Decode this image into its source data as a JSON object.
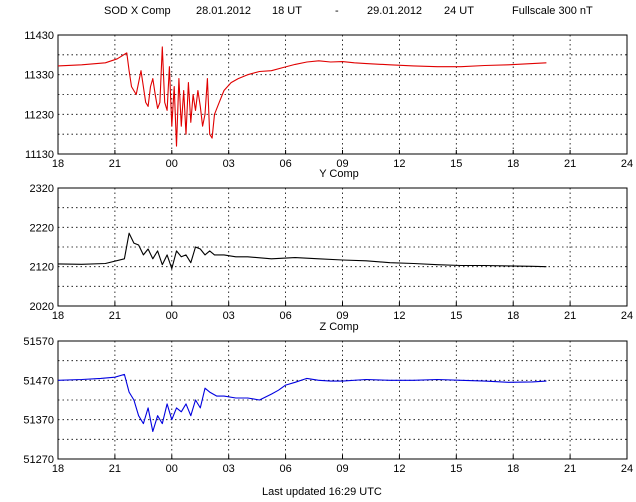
{
  "header": {
    "station": "SOD X Comp",
    "start_date": "28.01.2012",
    "start_hour": "18 UT",
    "separator": "-",
    "end_date": "29.01.2012",
    "end_hour": "24 UT",
    "fullscale": "Fullscale 300 nT"
  },
  "footer": {
    "last_updated": "Last updated  16:29 UTC"
  },
  "chart_data": [
    {
      "type": "line",
      "component": "X",
      "title": "",
      "xlabel": "",
      "ylabel": "",
      "color": "#e00000",
      "grid": true,
      "xlim": [
        18,
        42
      ],
      "x_tick_labels": [
        "18",
        "21",
        "00",
        "03",
        "06",
        "09",
        "12",
        "15",
        "18",
        "21",
        "24"
      ],
      "ylim": [
        11130,
        11430
      ],
      "y_ticks": [
        11130,
        11230,
        11330,
        11430
      ],
      "series": [
        {
          "x": [
            18,
            19,
            20,
            20.5,
            20.9,
            21.0,
            21.1,
            21.3,
            21.5,
            21.7,
            21.8,
            21.9,
            22.0,
            22.1,
            22.2,
            22.3,
            22.4,
            22.5,
            22.6,
            22.7,
            22.8,
            22.9,
            23.0,
            23.1,
            23.2,
            23.3,
            23.4,
            23.5,
            23.6,
            23.7,
            23.8,
            23.9,
            24.0,
            24.1,
            24.2,
            24.3,
            24.4,
            24.5,
            24.6,
            24.8,
            25.0,
            25.3,
            25.6,
            26.0,
            26.5,
            27.0,
            27.5,
            28.0,
            28.5,
            29.0,
            29.5,
            30.0,
            30.5,
            31.0,
            32.0,
            33.0,
            34.0,
            35.0,
            36.0,
            37.0,
            38.0,
            38.6
          ],
          "y": [
            11352,
            11355,
            11360,
            11370,
            11385,
            11340,
            11300,
            11280,
            11340,
            11260,
            11250,
            11300,
            11320,
            11280,
            11245,
            11260,
            11400,
            11260,
            11240,
            11350,
            11200,
            11300,
            11150,
            11320,
            11200,
            11290,
            11180,
            11310,
            11210,
            11280,
            11240,
            11290,
            11250,
            11200,
            11230,
            11320,
            11180,
            11170,
            11230,
            11260,
            11290,
            11310,
            11320,
            11330,
            11338,
            11340,
            11348,
            11356,
            11362,
            11365,
            11362,
            11363,
            11360,
            11358,
            11355,
            11352,
            11350,
            11350,
            11353,
            11355,
            11358,
            11360
          ]
        }
      ]
    },
    {
      "type": "line",
      "component": "Y",
      "title": "Y Comp",
      "xlabel": "",
      "ylabel": "",
      "color": "#000000",
      "grid": true,
      "xlim": [
        18,
        42
      ],
      "x_tick_labels": [
        "18",
        "21",
        "00",
        "03",
        "06",
        "09",
        "12",
        "15",
        "18",
        "21",
        "24"
      ],
      "ylim": [
        2020,
        2320
      ],
      "y_ticks": [
        2020,
        2120,
        2220,
        2320
      ],
      "series": [
        {
          "x": [
            18,
            19,
            20,
            20.8,
            21.0,
            21.2,
            21.4,
            21.6,
            21.8,
            22.0,
            22.2,
            22.4,
            22.6,
            22.8,
            23.0,
            23.2,
            23.4,
            23.6,
            23.8,
            24.0,
            24.2,
            24.4,
            24.6,
            25.0,
            25.5,
            26.0,
            27.0,
            28.0,
            29.0,
            30.0,
            31.0,
            32.0,
            33.0,
            34.0,
            35.0,
            36.0,
            37.0,
            38.0,
            38.6
          ],
          "y": [
            2127,
            2126,
            2128,
            2140,
            2205,
            2180,
            2175,
            2150,
            2165,
            2140,
            2160,
            2125,
            2150,
            2115,
            2160,
            2145,
            2150,
            2130,
            2170,
            2165,
            2150,
            2160,
            2150,
            2150,
            2145,
            2145,
            2140,
            2143,
            2140,
            2137,
            2135,
            2130,
            2128,
            2125,
            2123,
            2123,
            2122,
            2121,
            2120
          ]
        }
      ]
    },
    {
      "type": "line",
      "component": "Z",
      "title": "Z Comp",
      "xlabel": "",
      "ylabel": "",
      "color": "#0000e0",
      "grid": true,
      "xlim": [
        18,
        42
      ],
      "x_tick_labels": [
        "18",
        "21",
        "00",
        "03",
        "06",
        "09",
        "12",
        "15",
        "18",
        "21",
        "24"
      ],
      "ylim": [
        51270,
        51570
      ],
      "y_ticks": [
        51270,
        51370,
        51470,
        51570
      ],
      "series": [
        {
          "x": [
            18,
            19,
            19.8,
            20.4,
            20.8,
            21.0,
            21.2,
            21.4,
            21.6,
            21.8,
            22.0,
            22.2,
            22.4,
            22.6,
            22.8,
            23.0,
            23.2,
            23.4,
            23.6,
            23.8,
            24.0,
            24.2,
            24.4,
            24.7,
            25.0,
            25.5,
            26.0,
            26.5,
            27.0,
            27.3,
            27.6,
            28.0,
            28.5,
            29.0,
            29.5,
            30.0,
            31.0,
            32.0,
            33.0,
            34.0,
            35.0,
            36.0,
            37.0,
            38.0,
            38.6
          ],
          "y": [
            51470,
            51472,
            51475,
            51478,
            51485,
            51440,
            51420,
            51380,
            51360,
            51400,
            51340,
            51380,
            51360,
            51410,
            51370,
            51400,
            51390,
            51410,
            51380,
            51420,
            51400,
            51450,
            51440,
            51430,
            51430,
            51425,
            51425,
            51420,
            51435,
            51445,
            51458,
            51465,
            51475,
            51470,
            51468,
            51468,
            51472,
            51470,
            51470,
            51472,
            51470,
            51468,
            51465,
            51466,
            51468
          ]
        }
      ]
    }
  ]
}
